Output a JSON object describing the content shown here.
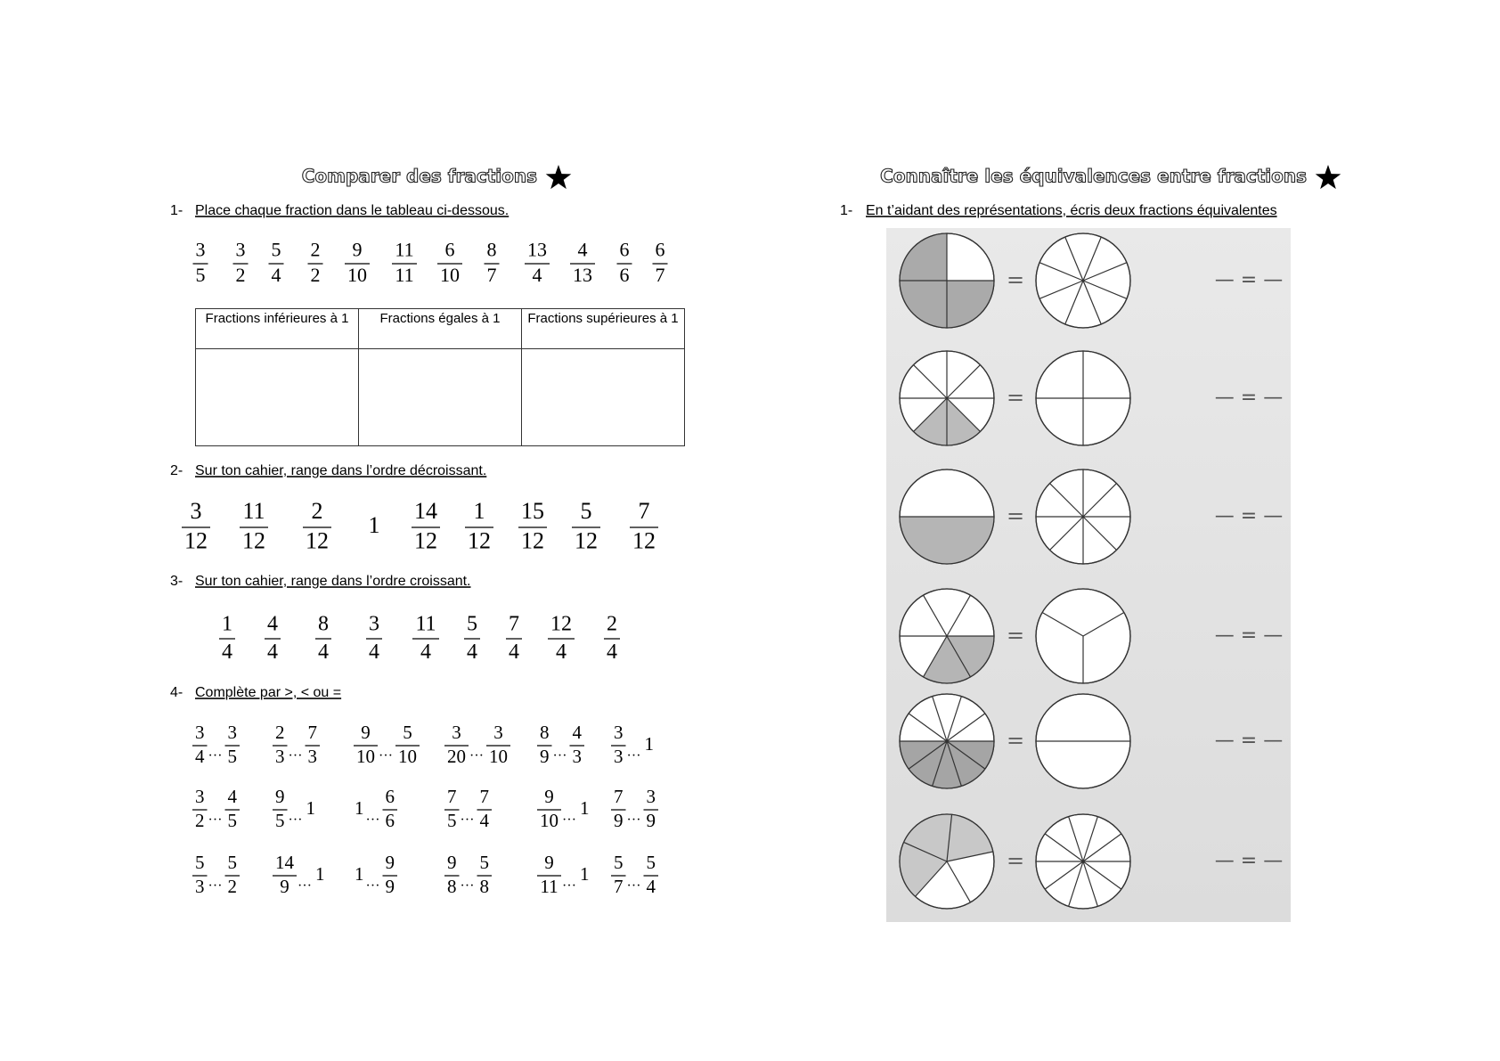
{
  "left": {
    "title": "Comparer des fractions",
    "q1": {
      "number": "1-",
      "text": "Place chaque fraction dans le tableau ci-dessous.",
      "fractions": [
        [
          3,
          5
        ],
        [
          3,
          2
        ],
        [
          5,
          4
        ],
        [
          2,
          2
        ],
        [
          9,
          10
        ],
        [
          11,
          11
        ],
        [
          6,
          10
        ],
        [
          8,
          7
        ],
        [
          13,
          4
        ],
        [
          4,
          13
        ],
        [
          6,
          6
        ],
        [
          6,
          7
        ]
      ],
      "table": {
        "headers": [
          "Fractions inférieures à 1",
          "Fractions égales à 1",
          "Fractions supérieures à 1"
        ]
      }
    },
    "q2": {
      "number": "2-",
      "text": "Sur ton cahier, range dans l’ordre décroissant.",
      "fractions": [
        [
          3,
          12
        ],
        [
          11,
          12
        ],
        [
          2,
          12
        ],
        1,
        [
          14,
          12
        ],
        [
          1,
          12
        ],
        [
          15,
          12
        ],
        [
          5,
          12
        ],
        [
          7,
          12
        ]
      ]
    },
    "q3": {
      "number": "3-",
      "text": "Sur ton cahier, range dans l’ordre croissant.",
      "fractions": [
        [
          1,
          4
        ],
        [
          4,
          4
        ],
        [
          8,
          4
        ],
        [
          3,
          4
        ],
        [
          11,
          4
        ],
        [
          5,
          4
        ],
        [
          7,
          4
        ],
        [
          12,
          4
        ],
        [
          2,
          4
        ]
      ]
    },
    "q4": {
      "number": "4-",
      "text": "Complète par >, < ou =",
      "rows": [
        [
          {
            "left": [
              3,
              4
            ],
            "dots": "…",
            "right": [
              3,
              5
            ]
          },
          {
            "left": [
              2,
              3
            ],
            "dots": "…",
            "right": [
              7,
              3
            ]
          },
          {
            "left": [
              9,
              10
            ],
            "dots": "…",
            "right": [
              5,
              10
            ]
          },
          {
            "left": [
              3,
              20
            ],
            "dots": "…",
            "right": [
              3,
              10
            ]
          },
          {
            "left": [
              8,
              9
            ],
            "dots": "…",
            "right": [
              4,
              3
            ]
          },
          {
            "left": [
              3,
              3
            ],
            "dots": "…",
            "right": 1
          }
        ],
        [
          {
            "left": [
              3,
              2
            ],
            "dots": "…",
            "right": [
              4,
              5
            ]
          },
          {
            "left": [
              9,
              5
            ],
            "dots": "…",
            "right": 1
          },
          {
            "left": 1,
            "dots": "…",
            "right": [
              6,
              6
            ]
          },
          {
            "left": [
              7,
              5
            ],
            "dots": "…",
            "right": [
              7,
              4
            ]
          },
          {
            "left": [
              9,
              10
            ],
            "dots": "…",
            "right": 1
          },
          {
            "left": [
              7,
              9
            ],
            "dots": "…",
            "right": [
              3,
              9
            ]
          }
        ],
        [
          {
            "left": [
              5,
              3
            ],
            "dots": "…",
            "right": [
              5,
              2
            ]
          },
          {
            "left": [
              14,
              9
            ],
            "dots": "…",
            "right": 1
          },
          {
            "left": 1,
            "dots": "…",
            "right": [
              9,
              9
            ]
          },
          {
            "left": [
              9,
              8
            ],
            "dots": "…",
            "right": [
              5,
              8
            ]
          },
          {
            "left": [
              9,
              11
            ],
            "dots": "…",
            "right": 1
          },
          {
            "left": [
              5,
              7
            ],
            "dots": "…",
            "right": [
              5,
              4
            ]
          }
        ]
      ]
    }
  },
  "right": {
    "title": "Connaître les équivalences entre fractions",
    "q1": {
      "number": "1-",
      "text": "En t’aidant des représentations, écris deux fractions équivalentes"
    },
    "rows": [
      {
        "sign": "=",
        "blank": "— = —"
      },
      {
        "sign": "=",
        "blank": "— = —"
      },
      {
        "sign": "=",
        "blank": "— = —"
      },
      {
        "sign": "=",
        "blank": "— = —"
      },
      {
        "sign": "=",
        "blank": "— = —"
      },
      {
        "sign": "=",
        "blank": "— = —"
      }
    ]
  }
}
